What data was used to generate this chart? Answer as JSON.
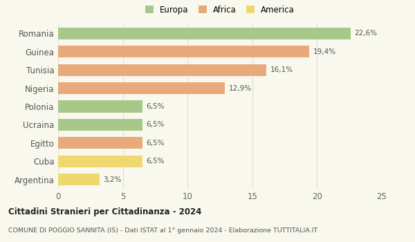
{
  "categories": [
    "Romania",
    "Guinea",
    "Tunisia",
    "Nigeria",
    "Polonia",
    "Ucraina",
    "Egitto",
    "Cuba",
    "Argentina"
  ],
  "values": [
    22.6,
    19.4,
    16.1,
    12.9,
    6.5,
    6.5,
    6.5,
    6.5,
    3.2
  ],
  "labels": [
    "22,6%",
    "19,4%",
    "16,1%",
    "12,9%",
    "6,5%",
    "6,5%",
    "6,5%",
    "6,5%",
    "3,2%"
  ],
  "colors": [
    "#a8c88a",
    "#e8aa7a",
    "#e8aa7a",
    "#e8aa7a",
    "#a8c88a",
    "#a8c88a",
    "#e8aa7a",
    "#f0d870",
    "#f0d870"
  ],
  "legend_labels": [
    "Europa",
    "Africa",
    "America"
  ],
  "legend_colors": [
    "#a8c88a",
    "#e8aa7a",
    "#f0d870"
  ],
  "xlim": [
    0,
    25
  ],
  "xticks": [
    0,
    5,
    10,
    15,
    20,
    25
  ],
  "title_bold": "Cittadini Stranieri per Cittadinanza - 2024",
  "subtitle": "COMUNE DI POGGIO SANNITA (IS) - Dati ISTAT al 1° gennaio 2024 - Elaborazione TUTTITALIA.IT",
  "background_color": "#f8f8ee",
  "grid_color": "#e0e0d0"
}
